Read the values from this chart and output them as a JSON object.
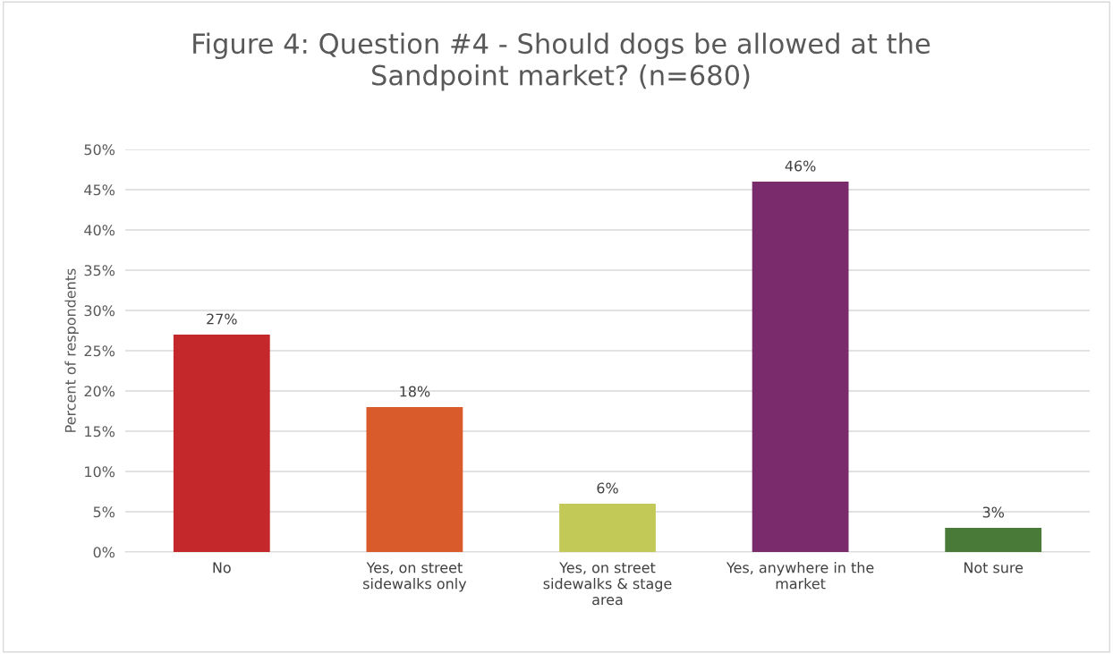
{
  "chart_data": {
    "type": "bar",
    "title": "Figure 4: Question #4 - Should dogs be allowed at the\nSandpoint market? (n=680)",
    "ylabel": "Percent of respondents",
    "categories": [
      "No",
      "Yes, on street\nsidewalks only",
      "Yes, on street\nsidewalks & stage\narea",
      "Yes, anywhere in the\nmarket",
      "Not sure"
    ],
    "values": [
      27,
      18,
      6,
      46,
      3
    ],
    "colors": [
      "#c4282b",
      "#d95a2b",
      "#c3c957",
      "#7a2b6c",
      "#4a7a38"
    ],
    "value_labels": [
      "27%",
      "18%",
      "6%",
      "46%",
      "3%"
    ],
    "ylim": [
      0,
      50
    ],
    "yticks": [
      {
        "value": 0,
        "label": "0%"
      },
      {
        "value": 5,
        "label": "5%"
      },
      {
        "value": 10,
        "label": "10%"
      },
      {
        "value": 15,
        "label": "15%"
      },
      {
        "value": 20,
        "label": "20%"
      },
      {
        "value": 25,
        "label": "25%"
      },
      {
        "value": 30,
        "label": "30%"
      },
      {
        "value": 35,
        "label": "35%"
      },
      {
        "value": 40,
        "label": "40%"
      },
      {
        "value": 45,
        "label": "45%"
      },
      {
        "value": 50,
        "label": "50%"
      }
    ],
    "grid": "y",
    "legend": false
  }
}
